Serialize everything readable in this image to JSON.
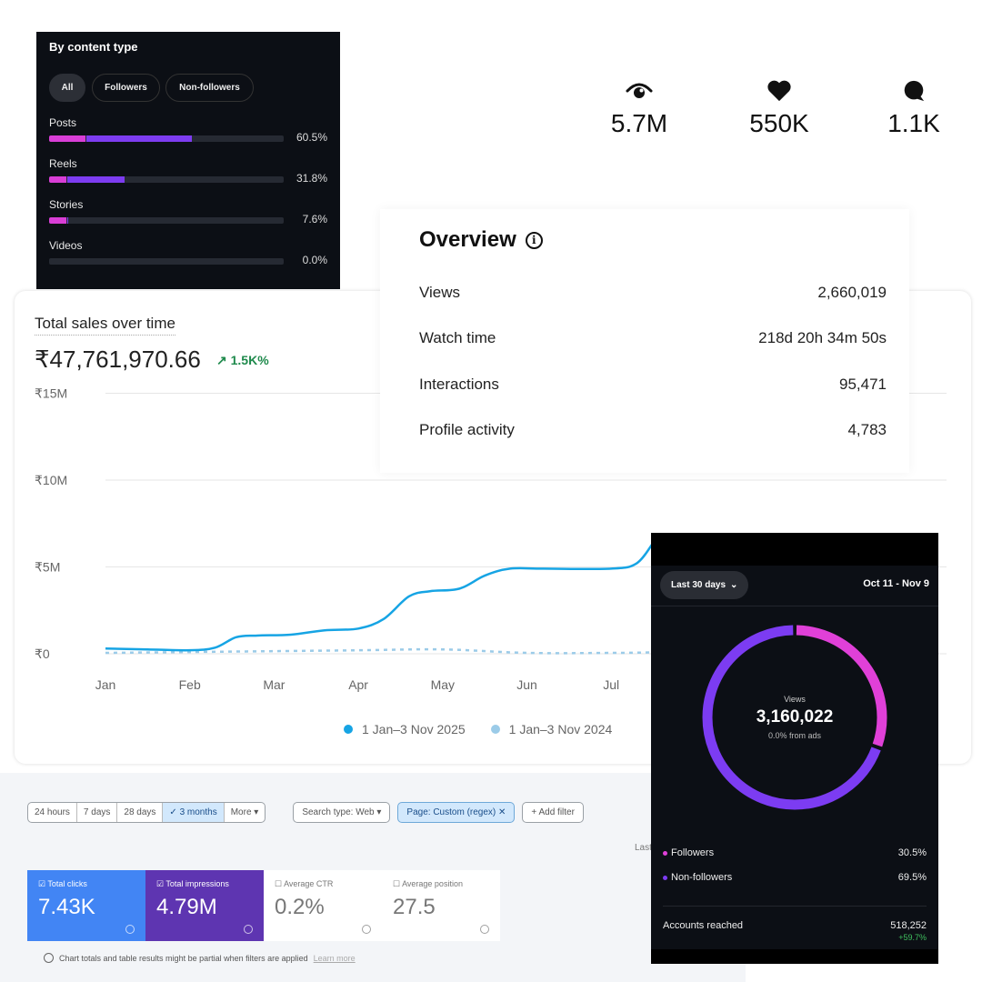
{
  "content_type": {
    "title": "By content type",
    "filters": [
      "All",
      "Followers",
      "Non-followers"
    ],
    "rows": [
      {
        "label": "Posts",
        "percent": "60.5%",
        "followers_frac": 0.155,
        "nonfollowers_frac": 0.45
      },
      {
        "label": "Reels",
        "percent": "31.8%",
        "followers_frac": 0.075,
        "nonfollowers_frac": 0.243
      },
      {
        "label": "Stories",
        "percent": "7.6%",
        "followers_frac": 0.072,
        "nonfollowers_frac": 0.004
      },
      {
        "label": "Videos",
        "percent": "0.0%",
        "followers_frac": 0,
        "nonfollowers_frac": 0
      }
    ],
    "colors": {
      "followers": "#d93ed6",
      "nonfollowers": "#7d3cf0"
    }
  },
  "stats": [
    {
      "icon": "eye-icon",
      "value": "5.7M"
    },
    {
      "icon": "heart-icon",
      "value": "550K"
    },
    {
      "icon": "comment-icon",
      "value": "1.1K"
    }
  ],
  "overview": {
    "title": "Overview",
    "info": "i",
    "rows": [
      {
        "label": "Views",
        "value": "2,660,019"
      },
      {
        "label": "Watch time",
        "value": "218d 20h 34m 50s"
      },
      {
        "label": "Interactions",
        "value": "95,471"
      },
      {
        "label": "Profile activity",
        "value": "4,783"
      }
    ]
  },
  "sales": {
    "title": "Total sales over time",
    "total": "₹47,761,970.66",
    "change": "↗ 1.5K%"
  },
  "chart_data": {
    "type": "line",
    "title": "Total sales over time",
    "xlabel": "",
    "ylabel": "",
    "x_ticks": [
      "Jan",
      "Feb",
      "Mar",
      "Apr",
      "May",
      "Jun",
      "Jul"
    ],
    "y_ticks": [
      "₹0",
      "₹5M",
      "₹10M",
      "₹15M"
    ],
    "y_tick_values": [
      0,
      5,
      10,
      15
    ],
    "ylim": [
      0,
      15
    ],
    "y_unit": "millions INR",
    "series": [
      {
        "name": "1 Jan–3 Nov 2025",
        "color": "#16a4e4",
        "style": "solid",
        "x": [
          0,
          0.5,
          1.0,
          1.3,
          1.55,
          1.8,
          2.2,
          2.6,
          3.0,
          3.3,
          3.6,
          3.85,
          4.2,
          4.5,
          4.8,
          5.2,
          6.0,
          6.3,
          6.5
        ],
        "y": [
          0.3,
          0.25,
          0.2,
          0.35,
          0.95,
          1.05,
          1.1,
          1.35,
          1.45,
          2.0,
          3.3,
          3.6,
          3.75,
          4.5,
          4.9,
          4.9,
          4.9,
          5.2,
          6.4
        ]
      },
      {
        "name": "1 Jan–3 Nov 2024",
        "color": "#9bcbe8",
        "style": "dashed",
        "x": [
          0,
          1,
          2,
          3,
          4,
          5,
          6,
          6.5
        ],
        "y": [
          0.05,
          0.1,
          0.15,
          0.2,
          0.25,
          0.05,
          0.05,
          0.08
        ]
      }
    ],
    "legend": "bottom",
    "grid": true
  },
  "donut_panel": {
    "range_select": "Last 30 days",
    "date_range": "Oct 11 - Nov 9",
    "center_label": "Views",
    "center_value": "3,160,022",
    "center_sub": "0.0% from ads",
    "segments": [
      {
        "label": "Followers",
        "percent": "30.5%",
        "value": 30.5,
        "color": "#e040d8"
      },
      {
        "label": "Non-followers",
        "percent": "69.5%",
        "value": 69.5,
        "color": "#7c3cf2"
      }
    ],
    "accounts_label": "Accounts reached",
    "accounts_value": "518,252",
    "accounts_change": "+59.7%"
  },
  "search_console": {
    "date_ranges": [
      "24 hours",
      "7 days",
      "28 days",
      "✓ 3 months",
      "More ▾"
    ],
    "search_type": "Search type: Web ▾",
    "page_filter": "Page: Custom (regex)  ✕",
    "add_filter": "+ Add filter",
    "last_updated": "Last updated",
    "metrics": [
      {
        "label": "☑ Total clicks",
        "value": "7.43K"
      },
      {
        "label": "☑ Total impressions",
        "value": "4.79M"
      },
      {
        "label": "☐ Average CTR",
        "value": "0.2%"
      },
      {
        "label": "☐ Average position",
        "value": "27.5"
      }
    ],
    "note": "Chart totals and table results might be partial when filters are applied",
    "learn_more": "Learn more"
  }
}
